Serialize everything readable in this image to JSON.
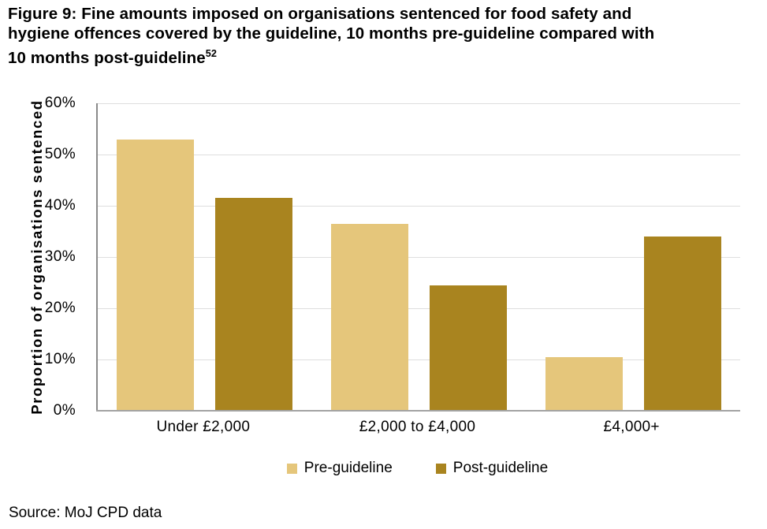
{
  "title": {
    "lines": [
      "Figure 9: Fine amounts imposed on organisations sentenced for food safety and",
      "hygiene offences covered by the guideline, 10 months pre-guideline compared with",
      "10 months post-guideline"
    ],
    "footnote_marker": "52"
  },
  "source": "Source: MoJ CPD data",
  "chart_data": {
    "type": "bar",
    "title": "",
    "xlabel": "",
    "ylabel": "Proportion of organisations sentenced",
    "categories": [
      "Under £2,000",
      "£2,000 to £4,000",
      "£4,000+"
    ],
    "series": [
      {
        "name": "Pre-guideline",
        "color": "#E5C67B",
        "values": [
          53,
          36.5,
          10.5
        ]
      },
      {
        "name": "Post-guideline",
        "color": "#A9841F",
        "values": [
          41.5,
          24.5,
          34
        ]
      }
    ],
    "ylim": [
      0,
      60
    ],
    "yticks": [
      0,
      10,
      20,
      30,
      40,
      50,
      60
    ],
    "ytick_labels": [
      "0%",
      "10%",
      "20%",
      "30%",
      "40%",
      "50%",
      "60%"
    ],
    "grid": true,
    "legend_position": "bottom-center"
  },
  "colors": {
    "gridline": "#DEDEDE",
    "axis_line": "#8A8A8A",
    "baseline": "#A3A3A3",
    "text": "#000000",
    "background": "#FFFFFF"
  }
}
